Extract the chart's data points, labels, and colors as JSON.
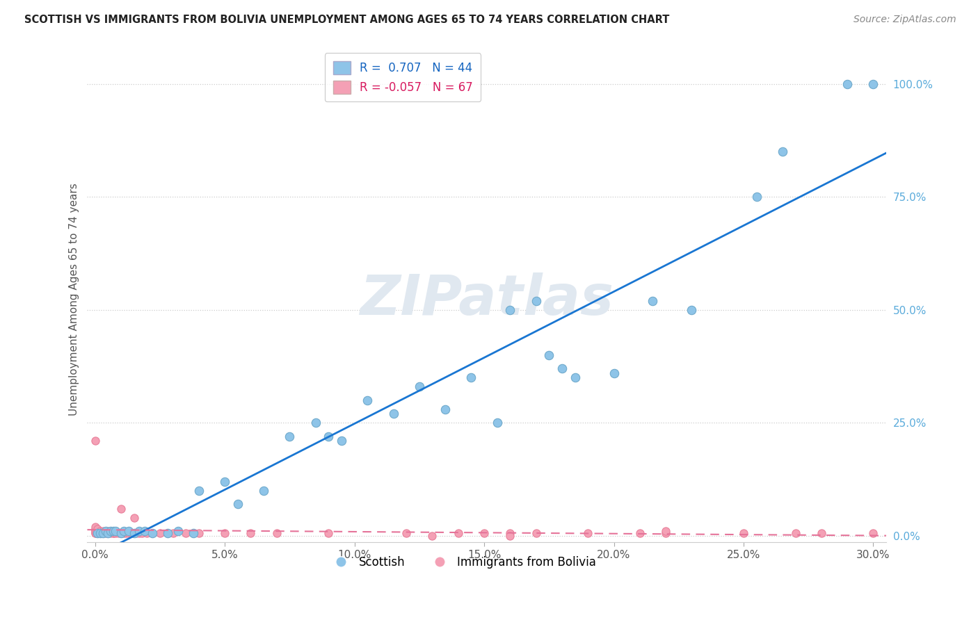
{
  "title": "SCOTTISH VS IMMIGRANTS FROM BOLIVIA UNEMPLOYMENT AMONG AGES 65 TO 74 YEARS CORRELATION CHART",
  "source": "Source: ZipAtlas.com",
  "ylabel": "Unemployment Among Ages 65 to 74 years",
  "x_ticks_labels": [
    "0.0%",
    "5.0%",
    "10.0%",
    "15.0%",
    "20.0%",
    "25.0%",
    "30.0%"
  ],
  "x_ticks_vals": [
    0.0,
    0.05,
    0.1,
    0.15,
    0.2,
    0.25,
    0.3
  ],
  "y_ticks_labels": [
    "0.0%",
    "25.0%",
    "50.0%",
    "75.0%",
    "100.0%"
  ],
  "y_ticks_vals": [
    0.0,
    0.25,
    0.5,
    0.75,
    1.0
  ],
  "xlim": [
    -0.003,
    0.305
  ],
  "ylim": [
    -0.015,
    1.06
  ],
  "scottish_R": 0.707,
  "scottish_N": 44,
  "bolivia_R": -0.057,
  "bolivia_N": 67,
  "scottish_color": "#8ec4e8",
  "bolivia_color": "#f4a0b5",
  "scottish_line_color": "#1976d2",
  "bolivia_line_color": "#e57399",
  "legend_R_scot_color": "#1565c0",
  "legend_R_boliv_color": "#d81b60",
  "watermark_color": "#e0e8f0",
  "background_color": "#ffffff",
  "grid_color": "#cccccc",
  "tick_color_y": "#5aabdb",
  "tick_color_x": "#555555",
  "title_color": "#222222",
  "source_color": "#888888",
  "ylabel_color": "#555555",
  "scottish_x": [
    0.001,
    0.002,
    0.003,
    0.004,
    0.005,
    0.006,
    0.007,
    0.008,
    0.01,
    0.011,
    0.013,
    0.015,
    0.017,
    0.019,
    0.022,
    0.028,
    0.032,
    0.038,
    0.04,
    0.05,
    0.055,
    0.065,
    0.075,
    0.085,
    0.09,
    0.095,
    0.105,
    0.115,
    0.125,
    0.135,
    0.145,
    0.155,
    0.16,
    0.17,
    0.175,
    0.18,
    0.185,
    0.2,
    0.215,
    0.23,
    0.255,
    0.265,
    0.29,
    0.3
  ],
  "scottish_y": [
    0.005,
    0.005,
    0.005,
    0.01,
    0.005,
    0.01,
    0.01,
    0.01,
    0.005,
    0.01,
    0.01,
    0.005,
    0.01,
    0.01,
    0.005,
    0.005,
    0.01,
    0.005,
    0.1,
    0.12,
    0.07,
    0.1,
    0.22,
    0.25,
    0.22,
    0.21,
    0.3,
    0.27,
    0.33,
    0.28,
    0.35,
    0.25,
    0.5,
    0.52,
    0.4,
    0.37,
    0.35,
    0.36,
    0.52,
    0.5,
    0.75,
    0.85,
    1.0,
    1.0
  ],
  "bolivia_x": [
    0.0,
    0.0,
    0.0,
    0.0,
    0.0,
    0.0,
    0.001,
    0.001,
    0.001,
    0.001,
    0.002,
    0.002,
    0.002,
    0.003,
    0.003,
    0.003,
    0.004,
    0.004,
    0.005,
    0.005,
    0.005,
    0.006,
    0.006,
    0.007,
    0.007,
    0.008,
    0.008,
    0.009,
    0.01,
    0.01,
    0.011,
    0.012,
    0.013,
    0.014,
    0.015,
    0.016,
    0.017,
    0.018,
    0.02,
    0.022,
    0.025,
    0.028,
    0.03,
    0.035,
    0.04,
    0.05,
    0.06,
    0.07,
    0.09,
    0.12,
    0.14,
    0.15,
    0.16,
    0.17,
    0.19,
    0.21,
    0.22,
    0.25,
    0.27,
    0.28,
    0.0,
    0.01,
    0.015,
    0.13,
    0.16,
    0.22,
    0.3
  ],
  "bolivia_y": [
    0.005,
    0.005,
    0.01,
    0.01,
    0.015,
    0.02,
    0.005,
    0.005,
    0.01,
    0.015,
    0.005,
    0.005,
    0.01,
    0.005,
    0.005,
    0.01,
    0.005,
    0.01,
    0.005,
    0.005,
    0.01,
    0.005,
    0.01,
    0.005,
    0.005,
    0.005,
    0.01,
    0.005,
    0.005,
    0.005,
    0.005,
    0.005,
    0.005,
    0.005,
    0.005,
    0.005,
    0.005,
    0.005,
    0.005,
    0.005,
    0.005,
    0.005,
    0.005,
    0.005,
    0.005,
    0.005,
    0.005,
    0.005,
    0.005,
    0.005,
    0.005,
    0.005,
    0.005,
    0.005,
    0.005,
    0.005,
    0.005,
    0.005,
    0.005,
    0.005,
    0.21,
    0.06,
    0.04,
    0.0,
    0.0,
    0.01,
    0.005
  ]
}
